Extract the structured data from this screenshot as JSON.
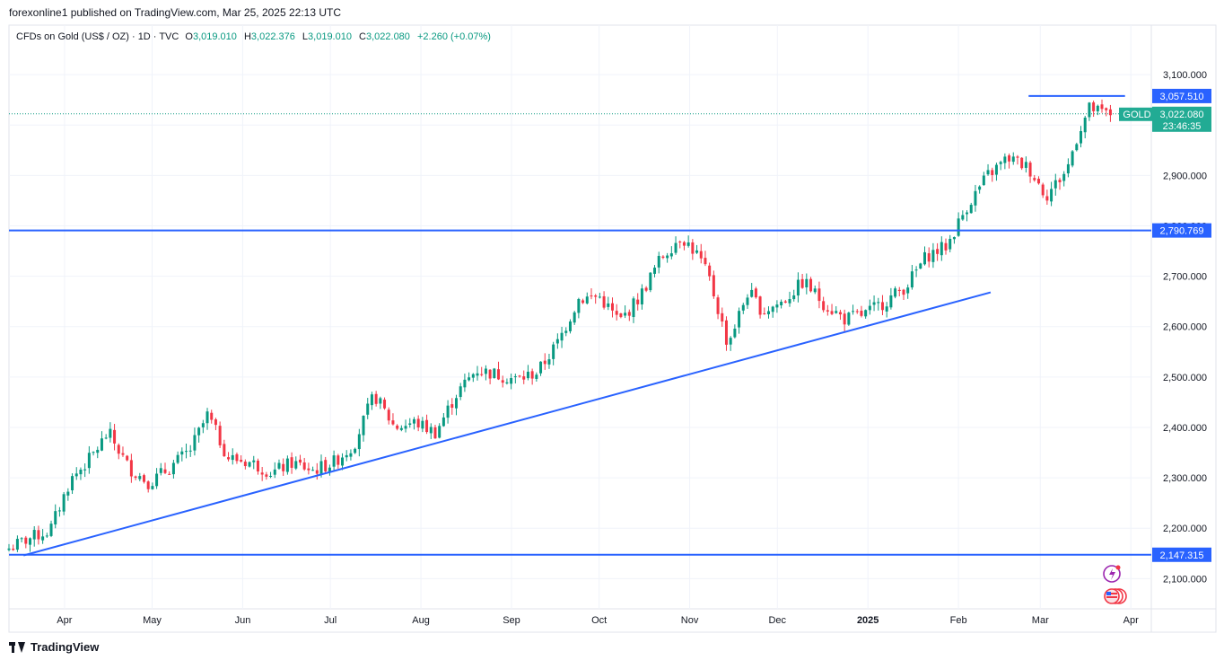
{
  "header": {
    "caption": "forexonline1 published on TradingView.com, Mar 25, 2025 22:13 UTC"
  },
  "legend": {
    "symbol": "CFDs on Gold (US$ / OZ) · 1D · TVC",
    "open_label": "O",
    "open": "3,019.010",
    "high_label": "H",
    "high": "3,022.376",
    "low_label": "L",
    "low": "3,019.010",
    "close_label": "C",
    "close": "3,022.080",
    "change": "+2.260 (+0.07%)"
  },
  "price_tag": {
    "symbol": "GOLD",
    "price": "3,022.080",
    "countdown": "23:46:35"
  },
  "footer": {
    "brand": "TradingView"
  },
  "colors": {
    "up": "#089981",
    "down": "#f23645",
    "line": "#2962ff",
    "grid": "#f0f3fa",
    "text": "#131722",
    "tag": "#22ab94"
  },
  "chart_data": {
    "type": "candlestick",
    "ylim": [
      2040,
      3150
    ],
    "y_ticks": [
      2100,
      2200,
      2300,
      2400,
      2500,
      2600,
      2700,
      2800,
      2900,
      3000,
      3100
    ],
    "y_tick_labels": [
      "2,100.000",
      "2,200.000",
      "2,300.000",
      "2,400.000",
      "2,500.000",
      "2,600.000",
      "2,700.000",
      "2,800.000",
      "2,900.000",
      "3,000.000",
      "3,100.000"
    ],
    "x_range": [
      "2024-03-13",
      "2025-04-08"
    ],
    "x_ticks": [
      {
        "date": "2024-04-01",
        "label": "Apr"
      },
      {
        "date": "2024-05-01",
        "label": "May"
      },
      {
        "date": "2024-06-01",
        "label": "Jun"
      },
      {
        "date": "2024-07-01",
        "label": "Jul"
      },
      {
        "date": "2024-08-01",
        "label": "Aug"
      },
      {
        "date": "2024-09-01",
        "label": "Sep"
      },
      {
        "date": "2024-10-01",
        "label": "Oct"
      },
      {
        "date": "2024-11-01",
        "label": "Nov"
      },
      {
        "date": "2024-12-01",
        "label": "Dec"
      },
      {
        "date": "2025-01-01",
        "label": "2025",
        "bold": true
      },
      {
        "date": "2025-02-01",
        "label": "Feb"
      },
      {
        "date": "2025-03-01",
        "label": "Mar"
      },
      {
        "date": "2025-04-01",
        "label": "Apr"
      }
    ],
    "close_path": [
      [
        "2024-03-13",
        2160
      ],
      [
        "2024-03-20",
        2180
      ],
      [
        "2024-03-27",
        2195
      ],
      [
        "2024-04-03",
        2295
      ],
      [
        "2024-04-10",
        2340
      ],
      [
        "2024-04-16",
        2390
      ],
      [
        "2024-04-23",
        2320
      ],
      [
        "2024-04-30",
        2290
      ],
      [
        "2024-05-07",
        2320
      ],
      [
        "2024-05-14",
        2355
      ],
      [
        "2024-05-20",
        2425
      ],
      [
        "2024-05-27",
        2340
      ],
      [
        "2024-06-04",
        2330
      ],
      [
        "2024-06-11",
        2310
      ],
      [
        "2024-06-18",
        2330
      ],
      [
        "2024-06-25",
        2315
      ],
      [
        "2024-07-02",
        2330
      ],
      [
        "2024-07-09",
        2365
      ],
      [
        "2024-07-16",
        2465
      ],
      [
        "2024-07-23",
        2400
      ],
      [
        "2024-07-30",
        2410
      ],
      [
        "2024-08-06",
        2390
      ],
      [
        "2024-08-13",
        2465
      ],
      [
        "2024-08-20",
        2515
      ],
      [
        "2024-08-27",
        2505
      ],
      [
        "2024-09-03",
        2495
      ],
      [
        "2024-09-10",
        2510
      ],
      [
        "2024-09-17",
        2570
      ],
      [
        "2024-09-24",
        2655
      ],
      [
        "2024-10-01",
        2660
      ],
      [
        "2024-10-08",
        2610
      ],
      [
        "2024-10-15",
        2660
      ],
      [
        "2024-10-22",
        2735
      ],
      [
        "2024-10-29",
        2780
      ],
      [
        "2024-11-04",
        2740
      ],
      [
        "2024-11-08",
        2690
      ],
      [
        "2024-11-14",
        2565
      ],
      [
        "2024-11-21",
        2670
      ],
      [
        "2024-11-26",
        2630
      ],
      [
        "2024-12-03",
        2650
      ],
      [
        "2024-12-10",
        2690
      ],
      [
        "2024-12-17",
        2645
      ],
      [
        "2024-12-24",
        2615
      ],
      [
        "2024-12-31",
        2625
      ],
      [
        "2025-01-07",
        2650
      ],
      [
        "2025-01-14",
        2680
      ],
      [
        "2025-01-21",
        2740
      ],
      [
        "2025-01-28",
        2760
      ],
      [
        "2025-02-04",
        2840
      ],
      [
        "2025-02-11",
        2900
      ],
      [
        "2025-02-18",
        2935
      ],
      [
        "2025-02-25",
        2915
      ],
      [
        "2025-03-03",
        2860
      ],
      [
        "2025-03-10",
        2910
      ],
      [
        "2025-03-14",
        2985
      ],
      [
        "2025-03-18",
        3035
      ],
      [
        "2025-03-21",
        3025
      ],
      [
        "2025-03-25",
        3022
      ]
    ],
    "candle_count": 262,
    "candle_seed": 7,
    "last_price": 3022.08,
    "lines": [
      {
        "kind": "horizontal",
        "price": 3057.51,
        "label": "3,057.510",
        "from": "2025-02-25",
        "to": "2025-03-30"
      },
      {
        "kind": "horizontal",
        "price": 2790.769,
        "label": "2,790.769",
        "from": "2024-03-13",
        "to": "2025-04-08"
      },
      {
        "kind": "horizontal",
        "price": 2147.315,
        "label": "2,147.315",
        "from": "2024-03-13",
        "to": "2025-04-08"
      },
      {
        "kind": "trend",
        "p1": [
          "2024-03-18",
          2146
        ],
        "p2": [
          "2025-02-12",
          2668
        ]
      }
    ]
  }
}
